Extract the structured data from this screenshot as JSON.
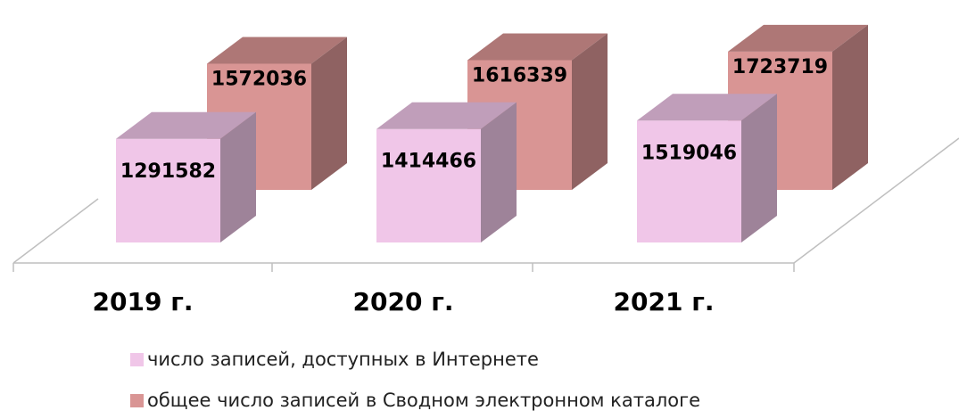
{
  "chart_data": {
    "type": "bar",
    "categories": [
      "2019 г.",
      "2020 г.",
      "2021 г."
    ],
    "series": [
      {
        "name": "число записей, доступных в Интернете",
        "color": "#f0c6e8",
        "values": [
          1291582,
          1414466,
          1519046
        ]
      },
      {
        "name": "общее число записей в Сводном электронном каталоге",
        "color": "#d99594",
        "values": [
          1572036,
          1616339,
          1723719
        ]
      }
    ],
    "ylim": [
      0,
      2000000
    ]
  }
}
